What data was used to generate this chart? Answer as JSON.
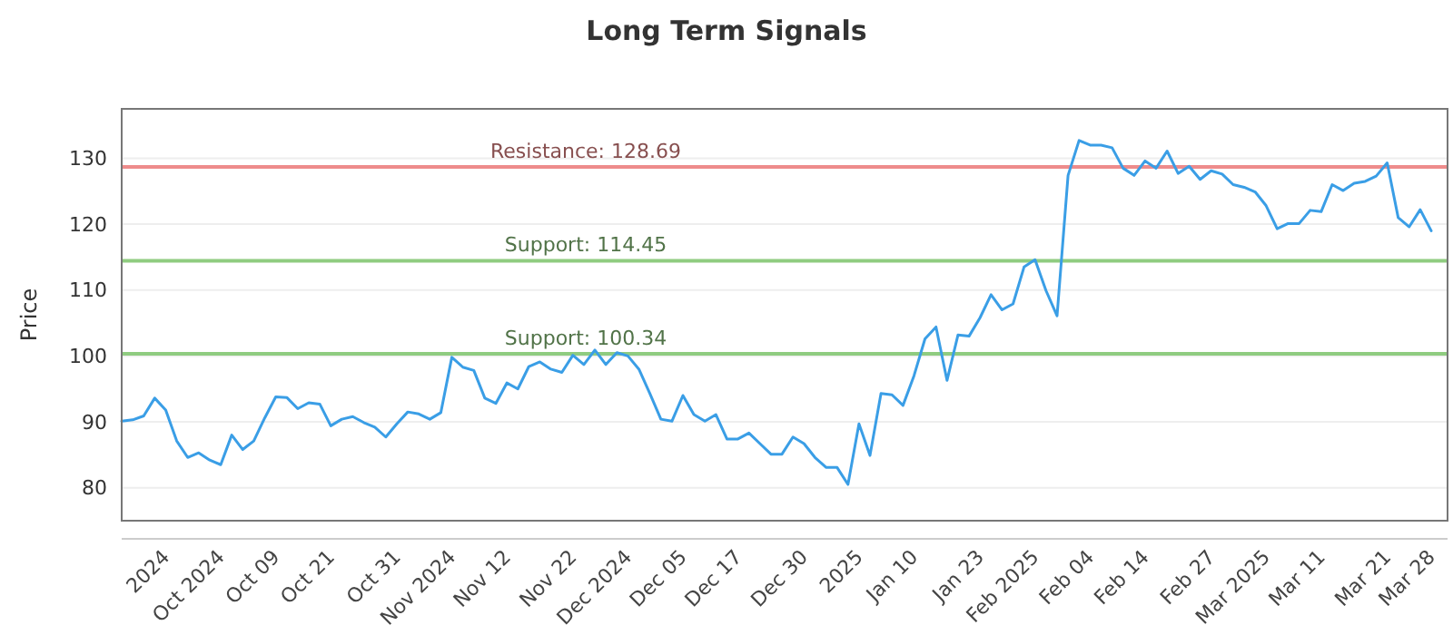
{
  "chart_data": {
    "type": "line",
    "title": "Long Term Signals",
    "ylabel": "Price",
    "categories": [
      null,
      null,
      null,
      null,
      "2024",
      null,
      null,
      null,
      null,
      "Oct 2024",
      null,
      null,
      null,
      null,
      "Oct 09",
      null,
      null,
      null,
      null,
      "Oct 21",
      null,
      null,
      null,
      null,
      null,
      "Oct 31",
      null,
      null,
      null,
      null,
      "Nov 2024",
      null,
      null,
      null,
      null,
      "Nov 12",
      null,
      null,
      null,
      null,
      null,
      "Nov 22",
      null,
      null,
      null,
      null,
      "Dec 2024",
      null,
      null,
      null,
      null,
      "Dec 05",
      null,
      null,
      null,
      null,
      "Dec 17",
      null,
      null,
      null,
      null,
      null,
      "Dec 30",
      null,
      null,
      null,
      null,
      "2025",
      null,
      null,
      null,
      null,
      "Jan 10",
      null,
      null,
      null,
      null,
      null,
      "Jan 23",
      null,
      null,
      null,
      null,
      "Feb 2025",
      null,
      null,
      null,
      null,
      "Feb 04",
      null,
      null,
      null,
      null,
      "Feb 14",
      null,
      null,
      null,
      null,
      null,
      "Feb 27",
      null,
      null,
      null,
      null,
      "Mar 2025",
      null,
      null,
      null,
      null,
      "Mar 11",
      null,
      null,
      null,
      null,
      null,
      "Mar 21",
      null,
      null,
      null,
      "Mar 28"
    ],
    "series": [
      {
        "color": "#3a9ee6",
        "values": [
          90.1,
          90.3,
          90.9,
          93.6,
          91.8,
          87.1,
          84.6,
          85.3,
          84.2,
          83.5,
          88.0,
          85.8,
          87.1,
          90.6,
          93.8,
          93.7,
          92.0,
          92.9,
          92.7,
          89.4,
          90.4,
          90.8,
          89.9,
          89.2,
          87.7,
          89.7,
          91.5,
          91.2,
          90.4,
          91.4,
          99.8,
          98.3,
          97.8,
          93.6,
          92.8,
          95.9,
          95.0,
          98.4,
          99.1,
          98.0,
          97.5,
          100.1,
          98.7,
          100.9,
          98.7,
          100.5,
          100.0,
          98.0,
          94.3,
          90.4,
          90.1,
          94.0,
          91.1,
          90.1,
          91.1,
          87.4,
          87.4,
          88.3,
          86.7,
          85.1,
          85.1,
          87.7,
          86.7,
          84.6,
          83.1,
          83.1,
          80.5,
          89.7,
          84.9,
          94.3,
          94.1,
          92.5,
          97.0,
          102.6,
          104.4,
          96.3,
          103.2,
          103.0,
          105.8,
          109.3,
          107.0,
          107.9,
          113.5,
          114.6,
          109.9,
          106.1,
          127.4,
          132.7,
          132.0,
          132.0,
          131.6,
          128.5,
          127.4,
          129.6,
          128.5,
          131.1,
          127.7,
          128.8,
          126.8,
          128.1,
          127.6,
          126.0,
          125.6,
          124.9,
          122.8,
          119.3,
          120.1,
          120.1,
          122.1,
          121.9,
          126.0,
          125.1,
          126.2,
          126.5,
          127.3,
          129.3,
          121.0,
          119.6,
          122.2,
          119.0
        ]
      }
    ],
    "ylim": [
      75,
      137.5
    ],
    "yticks": [
      80,
      90,
      100,
      110,
      120,
      130
    ],
    "grid": "y",
    "ref_lines": [
      {
        "axis": "y",
        "value": 128.69,
        "label": "Resistance: 128.69",
        "color": "#ee8c8c"
      },
      {
        "axis": "y",
        "value": 114.45,
        "label": "Support: 114.45",
        "color": "#8fcc80"
      },
      {
        "axis": "y",
        "value": 100.34,
        "label": "Support: 100.34",
        "color": "#8fcc80"
      }
    ]
  }
}
